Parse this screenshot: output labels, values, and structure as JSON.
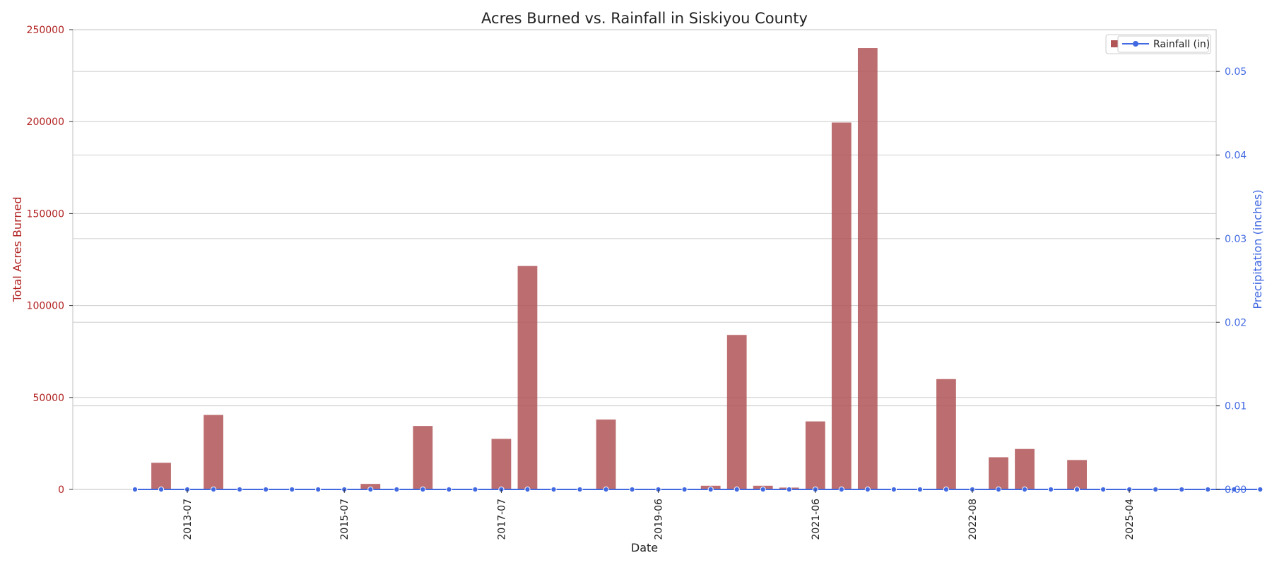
{
  "chart_data": {
    "type": "bar",
    "title": "Acres Burned vs. Rainfall in Siskiyou County",
    "xlabel": "Date",
    "ylabel_left": "Total Acres Burned",
    "ylabel_right": "Precipitation (inches)",
    "ylim_left": [
      0,
      250000
    ],
    "ylim_right": [
      0,
      0.055
    ],
    "yticks_left": [
      0,
      50000,
      100000,
      150000,
      200000,
      250000
    ],
    "yticks_right": [
      0.0,
      0.01,
      0.02,
      0.03,
      0.04,
      0.05
    ],
    "grid": true,
    "legend_position": "top-right",
    "legend_visible_label": "Rainfall (in)",
    "xtick_labels": [
      "2013-07",
      "2015-07",
      "2017-07",
      "2019-06",
      "2021-06",
      "2022-08",
      "2025-04"
    ],
    "xtick_label_positions": [
      2,
      8,
      14,
      20,
      26,
      32,
      38
    ],
    "series": [
      {
        "kind": "bar",
        "color": "#b05456",
        "values": [
          0,
          14500,
          0,
          40500,
          0,
          0,
          0,
          0,
          0,
          3000,
          0,
          34500,
          0,
          0,
          27500,
          121500,
          0,
          0,
          38000,
          0,
          0,
          0,
          2000,
          84000,
          2000,
          1000,
          37000,
          199500,
          240000,
          0,
          0,
          60000,
          0,
          17500,
          22000,
          0,
          16000,
          0,
          0,
          0,
          0,
          0,
          0,
          0
        ]
      },
      {
        "kind": "line",
        "name": "Rainfall (in)",
        "color": "#4169e1",
        "values": [
          0,
          0,
          0,
          0,
          0,
          0,
          0,
          0,
          0,
          0,
          0,
          0,
          0,
          0,
          0,
          0,
          0,
          0,
          0,
          0,
          0,
          0,
          0,
          0,
          0,
          0,
          0,
          0,
          0,
          0,
          0,
          0,
          0,
          0,
          0,
          0,
          0,
          0,
          0,
          0,
          0,
          0,
          0,
          0
        ]
      }
    ]
  }
}
